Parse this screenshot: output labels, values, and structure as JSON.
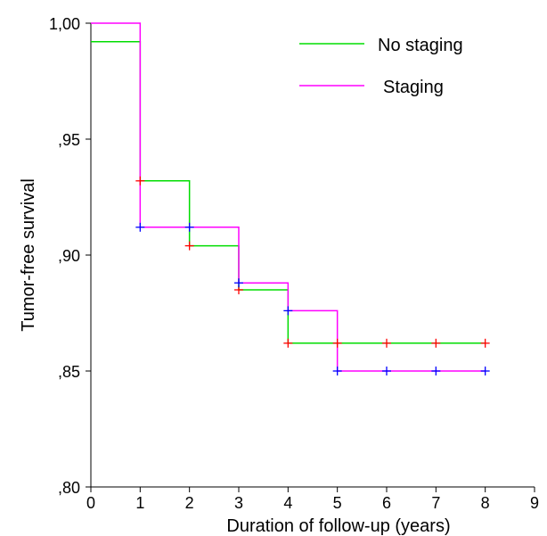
{
  "chart_data": {
    "type": "line",
    "subtype": "kaplan-meier-step",
    "xlabel": "Duration of follow-up (years)",
    "ylabel": "Tumor-free survival",
    "xlim": [
      0,
      9
    ],
    "ylim": [
      0.8,
      1.0
    ],
    "x_ticks": [
      0,
      1,
      2,
      3,
      4,
      5,
      6,
      7,
      8,
      9
    ],
    "x_tick_labels": [
      "0",
      "1",
      "2",
      "3",
      "4",
      "5",
      "6",
      "7",
      "8",
      "9"
    ],
    "y_ticks": [
      0.8,
      0.85,
      0.9,
      0.95,
      1.0
    ],
    "y_tick_labels": [
      ",80",
      ",85",
      ",90",
      ",95",
      "1,00"
    ],
    "grid": false,
    "legend_position": "top-right",
    "series": [
      {
        "name": "No staging",
        "color": "#00dd00",
        "steps": [
          [
            0,
            0.992
          ],
          [
            1,
            0.932
          ],
          [
            2,
            0.904
          ],
          [
            3,
            0.885
          ],
          [
            4,
            0.862
          ],
          [
            8,
            0.862
          ]
        ],
        "censor_marks": [
          [
            1,
            0.932
          ],
          [
            2,
            0.904
          ],
          [
            3,
            0.885
          ],
          [
            4,
            0.862
          ],
          [
            5,
            0.862
          ],
          [
            6,
            0.862
          ],
          [
            7,
            0.862
          ],
          [
            8,
            0.862
          ]
        ],
        "censor_color": "#ff0000"
      },
      {
        "name": "Staging",
        "color": "#ff00ff",
        "steps": [
          [
            0,
            1.0
          ],
          [
            1,
            0.912
          ],
          [
            3,
            0.888
          ],
          [
            4,
            0.876
          ],
          [
            5,
            0.85
          ],
          [
            8,
            0.85
          ]
        ],
        "censor_marks": [
          [
            1,
            0.912
          ],
          [
            2,
            0.912
          ],
          [
            3,
            0.888
          ],
          [
            4,
            0.876
          ],
          [
            5,
            0.85
          ],
          [
            6,
            0.85
          ],
          [
            7,
            0.85
          ],
          [
            8,
            0.85
          ]
        ],
        "censor_color": "#0000ff"
      }
    ]
  }
}
